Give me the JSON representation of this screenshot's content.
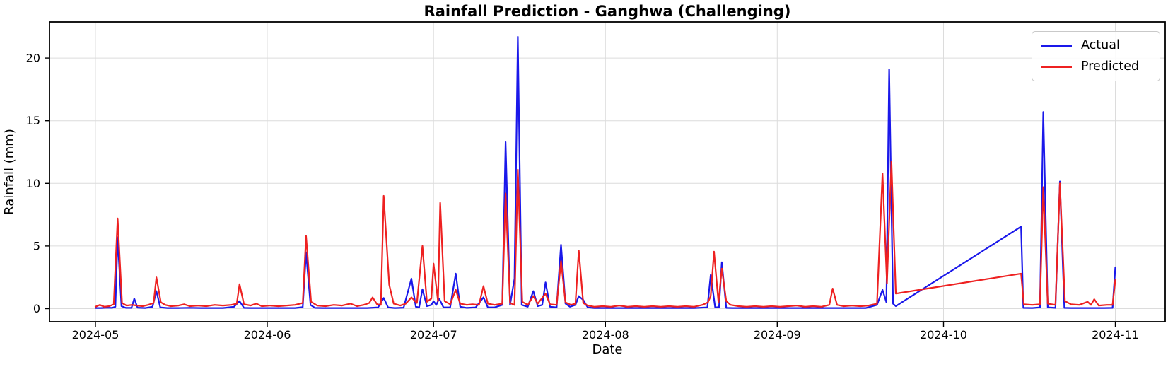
{
  "chart_data": {
    "type": "line",
    "title": "Rainfall Prediction - Ganghwa (Challenging)",
    "xlabel": "Date",
    "ylabel": "Rainfall (mm)",
    "legend_position": "upper right",
    "grid": true,
    "ylim": [
      -1.05,
      22.9
    ],
    "y_ticks": [
      0,
      5,
      10,
      15,
      20
    ],
    "x_ticks": [
      {
        "day": 0,
        "label": "2024-05"
      },
      {
        "day": 31,
        "label": "2024-06"
      },
      {
        "day": 61,
        "label": "2024-07"
      },
      {
        "day": 92,
        "label": "2024-08"
      },
      {
        "day": 123,
        "label": "2024-09"
      },
      {
        "day": 153,
        "label": "2024-10"
      },
      {
        "day": 184,
        "label": "2024-11"
      }
    ],
    "x_unit": "days since 2024-05-01",
    "note": "Straight segments between day 144 (2024-09-22) and day 167 (2024-10-15) reflect a gap interpolated linearly in both series.",
    "series": [
      {
        "name": "Actual",
        "color": "#1a18ea",
        "points": [
          [
            0,
            0.05
          ],
          [
            1,
            0.05
          ],
          [
            2,
            0.08
          ],
          [
            3,
            0.06
          ],
          [
            3.6,
            0.15
          ],
          [
            4,
            5.7
          ],
          [
            4.7,
            0.2
          ],
          [
            5.5,
            0.06
          ],
          [
            6.5,
            0.06
          ],
          [
            7,
            0.8
          ],
          [
            7.6,
            0.08
          ],
          [
            9,
            0.05
          ],
          [
            10.3,
            0.15
          ],
          [
            11,
            1.4
          ],
          [
            11.7,
            0.1
          ],
          [
            13,
            0.05
          ],
          [
            15,
            0.05
          ],
          [
            17,
            0.07
          ],
          [
            19,
            0.05
          ],
          [
            21,
            0.05
          ],
          [
            23,
            0.05
          ],
          [
            25,
            0.15
          ],
          [
            26,
            0.6
          ],
          [
            26.8,
            0.06
          ],
          [
            28,
            0.05
          ],
          [
            30,
            0.05
          ],
          [
            32,
            0.05
          ],
          [
            34,
            0.05
          ],
          [
            36,
            0.05
          ],
          [
            37.4,
            0.12
          ],
          [
            38,
            4.5
          ],
          [
            38.8,
            0.3
          ],
          [
            39.6,
            0.06
          ],
          [
            41,
            0.05
          ],
          [
            43,
            0.05
          ],
          [
            45,
            0.05
          ],
          [
            47,
            0.05
          ],
          [
            49,
            0.05
          ],
          [
            51,
            0.1
          ],
          [
            52,
            0.85
          ],
          [
            52.8,
            0.1
          ],
          [
            54,
            0.05
          ],
          [
            55.6,
            0.08
          ],
          [
            57,
            2.4
          ],
          [
            57.8,
            0.15
          ],
          [
            58.4,
            0.1
          ],
          [
            59,
            1.55
          ],
          [
            59.8,
            0.2
          ],
          [
            60.6,
            0.3
          ],
          [
            61,
            0.6
          ],
          [
            61.5,
            0.3
          ],
          [
            62,
            0.8
          ],
          [
            62.8,
            0.1
          ],
          [
            64,
            0.1
          ],
          [
            65,
            2.8
          ],
          [
            65.8,
            0.15
          ],
          [
            67,
            0.06
          ],
          [
            68.6,
            0.1
          ],
          [
            70,
            0.9
          ],
          [
            70.8,
            0.1
          ],
          [
            72,
            0.1
          ],
          [
            73.4,
            0.3
          ],
          [
            74,
            13.3
          ],
          [
            74.8,
            0.3
          ],
          [
            75.6,
            2.4
          ],
          [
            76.2,
            21.7
          ],
          [
            76.9,
            0.3
          ],
          [
            78,
            0.15
          ],
          [
            79,
            1.4
          ],
          [
            79.8,
            0.2
          ],
          [
            80.6,
            0.3
          ],
          [
            81.2,
            2.1
          ],
          [
            82,
            0.15
          ],
          [
            83.2,
            0.1
          ],
          [
            84,
            5.1
          ],
          [
            84.8,
            0.4
          ],
          [
            85.6,
            0.15
          ],
          [
            86.6,
            0.3
          ],
          [
            87.2,
            1.0
          ],
          [
            88,
            0.7
          ],
          [
            88.8,
            0.1
          ],
          [
            90,
            0.05
          ],
          [
            93,
            0.05
          ],
          [
            96,
            0.05
          ],
          [
            99,
            0.05
          ],
          [
            102,
            0.05
          ],
          [
            105,
            0.05
          ],
          [
            108,
            0.05
          ],
          [
            110.4,
            0.1
          ],
          [
            111,
            2.7
          ],
          [
            111.8,
            0.1
          ],
          [
            112.5,
            0.12
          ],
          [
            113,
            3.7
          ],
          [
            113.8,
            0.06
          ],
          [
            115,
            0.05
          ],
          [
            118,
            0.05
          ],
          [
            121,
            0.05
          ],
          [
            124,
            0.05
          ],
          [
            127,
            0.05
          ],
          [
            130,
            0.05
          ],
          [
            133,
            0.05
          ],
          [
            136,
            0.05
          ],
          [
            139,
            0.05
          ],
          [
            141,
            0.3
          ],
          [
            142,
            1.5
          ],
          [
            142.7,
            0.5
          ],
          [
            143.2,
            19.1
          ],
          [
            143.9,
            0.4
          ],
          [
            144.4,
            0.2
          ],
          [
            167,
            6.55
          ],
          [
            167.4,
            0.06
          ],
          [
            169,
            0.05
          ],
          [
            170.4,
            0.1
          ],
          [
            171,
            15.7
          ],
          [
            171.8,
            0.1
          ],
          [
            173.2,
            0.06
          ],
          [
            174,
            10.15
          ],
          [
            174.8,
            0.06
          ],
          [
            176,
            0.05
          ],
          [
            178,
            0.05
          ],
          [
            180,
            0.05
          ],
          [
            182,
            0.05
          ],
          [
            183.5,
            0.06
          ],
          [
            184,
            3.3
          ]
        ]
      },
      {
        "name": "Predicted",
        "color": "#ee2121",
        "points": [
          [
            0,
            0.15
          ],
          [
            0.8,
            0.3
          ],
          [
            1.6,
            0.15
          ],
          [
            2.5,
            0.2
          ],
          [
            3.3,
            0.35
          ],
          [
            4,
            7.2
          ],
          [
            4.8,
            0.45
          ],
          [
            5.6,
            0.25
          ],
          [
            6.6,
            0.3
          ],
          [
            7.5,
            0.25
          ],
          [
            8.5,
            0.2
          ],
          [
            9.5,
            0.3
          ],
          [
            10.5,
            0.45
          ],
          [
            11,
            2.5
          ],
          [
            11.8,
            0.5
          ],
          [
            12.6,
            0.3
          ],
          [
            13.6,
            0.2
          ],
          [
            15,
            0.25
          ],
          [
            16,
            0.35
          ],
          [
            17,
            0.2
          ],
          [
            18.5,
            0.25
          ],
          [
            20,
            0.2
          ],
          [
            21.5,
            0.3
          ],
          [
            23,
            0.25
          ],
          [
            24.5,
            0.3
          ],
          [
            25.5,
            0.4
          ],
          [
            26,
            1.95
          ],
          [
            26.8,
            0.35
          ],
          [
            28,
            0.25
          ],
          [
            29,
            0.4
          ],
          [
            30,
            0.2
          ],
          [
            31.5,
            0.25
          ],
          [
            33,
            0.2
          ],
          [
            34.5,
            0.25
          ],
          [
            36,
            0.3
          ],
          [
            37.4,
            0.45
          ],
          [
            38,
            5.8
          ],
          [
            38.9,
            0.55
          ],
          [
            40,
            0.25
          ],
          [
            41.5,
            0.2
          ],
          [
            43,
            0.3
          ],
          [
            44.5,
            0.25
          ],
          [
            46,
            0.4
          ],
          [
            47.2,
            0.2
          ],
          [
            48.4,
            0.3
          ],
          [
            49.4,
            0.45
          ],
          [
            50,
            0.9
          ],
          [
            50.8,
            0.35
          ],
          [
            51.5,
            0.3
          ],
          [
            52,
            9.0
          ],
          [
            53,
            1.9
          ],
          [
            53.8,
            0.4
          ],
          [
            55,
            0.25
          ],
          [
            56,
            0.4
          ],
          [
            57,
            0.9
          ],
          [
            58,
            0.45
          ],
          [
            59,
            5.0
          ],
          [
            59.8,
            0.55
          ],
          [
            60.6,
            0.8
          ],
          [
            61,
            3.6
          ],
          [
            61.8,
            0.6
          ],
          [
            62.2,
            8.45
          ],
          [
            63,
            0.6
          ],
          [
            64,
            0.35
          ],
          [
            65,
            1.5
          ],
          [
            65.8,
            0.4
          ],
          [
            67,
            0.3
          ],
          [
            68,
            0.35
          ],
          [
            69.2,
            0.3
          ],
          [
            70,
            1.8
          ],
          [
            70.8,
            0.4
          ],
          [
            72,
            0.3
          ],
          [
            73.4,
            0.4
          ],
          [
            74,
            9.2
          ],
          [
            74.8,
            0.45
          ],
          [
            75.6,
            0.3
          ],
          [
            76.2,
            11.1
          ],
          [
            77,
            0.55
          ],
          [
            78,
            0.3
          ],
          [
            79,
            1.0
          ],
          [
            79.8,
            0.4
          ],
          [
            81.2,
            1.2
          ],
          [
            82,
            0.35
          ],
          [
            83.2,
            0.3
          ],
          [
            84,
            3.8
          ],
          [
            84.8,
            0.5
          ],
          [
            85.8,
            0.3
          ],
          [
            86.6,
            0.4
          ],
          [
            87.2,
            4.65
          ],
          [
            88,
            0.45
          ],
          [
            88.8,
            0.25
          ],
          [
            90,
            0.15
          ],
          [
            91.5,
            0.2
          ],
          [
            93,
            0.15
          ],
          [
            94.5,
            0.25
          ],
          [
            96,
            0.15
          ],
          [
            97.5,
            0.2
          ],
          [
            99,
            0.15
          ],
          [
            100.5,
            0.2
          ],
          [
            102,
            0.15
          ],
          [
            103.5,
            0.2
          ],
          [
            105,
            0.15
          ],
          [
            106.5,
            0.2
          ],
          [
            108,
            0.15
          ],
          [
            109.5,
            0.3
          ],
          [
            110.5,
            0.5
          ],
          [
            111,
            1.0
          ],
          [
            111.6,
            4.55
          ],
          [
            112.4,
            0.5
          ],
          [
            113,
            3.2
          ],
          [
            113.8,
            0.6
          ],
          [
            114.6,
            0.3
          ],
          [
            116,
            0.2
          ],
          [
            117.5,
            0.15
          ],
          [
            119,
            0.2
          ],
          [
            120.5,
            0.15
          ],
          [
            122,
            0.2
          ],
          [
            123.5,
            0.15
          ],
          [
            125,
            0.2
          ],
          [
            126.5,
            0.25
          ],
          [
            128,
            0.15
          ],
          [
            129.5,
            0.2
          ],
          [
            131,
            0.15
          ],
          [
            132.4,
            0.3
          ],
          [
            133,
            1.6
          ],
          [
            133.8,
            0.3
          ],
          [
            135,
            0.2
          ],
          [
            136.5,
            0.25
          ],
          [
            138,
            0.2
          ],
          [
            139.5,
            0.25
          ],
          [
            141,
            0.4
          ],
          [
            142,
            10.8
          ],
          [
            142.8,
            2.0
          ],
          [
            143.6,
            11.75
          ],
          [
            144.4,
            1.2
          ],
          [
            167,
            2.8
          ],
          [
            167.5,
            0.35
          ],
          [
            169,
            0.3
          ],
          [
            170.4,
            0.35
          ],
          [
            171,
            9.7
          ],
          [
            171.8,
            0.4
          ],
          [
            173.2,
            0.3
          ],
          [
            174,
            10.0
          ],
          [
            174.9,
            0.6
          ],
          [
            176,
            0.35
          ],
          [
            177.5,
            0.3
          ],
          [
            179,
            0.55
          ],
          [
            179.6,
            0.3
          ],
          [
            180.2,
            0.75
          ],
          [
            181,
            0.25
          ],
          [
            182.5,
            0.3
          ],
          [
            183.5,
            0.3
          ],
          [
            184,
            2.3
          ]
        ]
      }
    ],
    "style": {
      "grid_color": "#dcdcdc",
      "spine_color": "#000000",
      "background": "#ffffff"
    }
  }
}
